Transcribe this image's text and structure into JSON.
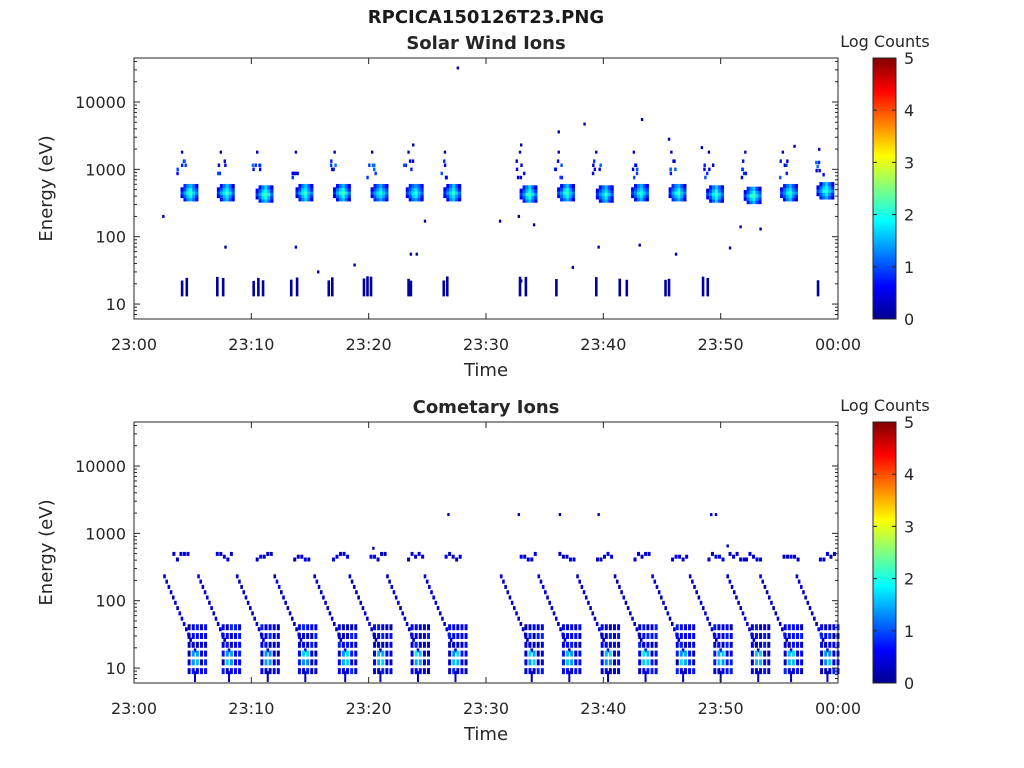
{
  "figure": {
    "title": "RPCICA150126T23.PNG"
  },
  "colorbar": {
    "label": "Log Counts",
    "ticks": [
      "0",
      "1",
      "2",
      "3",
      "4",
      "5"
    ],
    "colormap": [
      "#00008f",
      "#0000ff",
      "#0080ff",
      "#00ffff",
      "#80ff80",
      "#ffff00",
      "#ff8000",
      "#ff0000",
      "#800000"
    ]
  },
  "chart_data": [
    {
      "type": "heatmap",
      "title": "Solar Wind Ions",
      "xlabel": "Time",
      "ylabel": "Energy (eV)",
      "x_ticks": [
        "23:00",
        "23:10",
        "23:20",
        "23:30",
        "23:40",
        "23:50",
        "00:00"
      ],
      "y_ticks": [
        "10",
        "100",
        "1000",
        "10000"
      ],
      "y_scale": "log",
      "ylim": [
        6,
        45000
      ],
      "xlim_minutes": [
        0,
        60
      ],
      "clim": [
        0,
        5
      ],
      "blobs": [
        {
          "t": 4.8,
          "e": 450,
          "v": 1.9
        },
        {
          "t": 7.9,
          "e": 450,
          "v": 1.8
        },
        {
          "t": 11.2,
          "e": 430,
          "v": 1.9
        },
        {
          "t": 14.6,
          "e": 450,
          "v": 1.8
        },
        {
          "t": 17.8,
          "e": 450,
          "v": 1.9
        },
        {
          "t": 21.0,
          "e": 450,
          "v": 1.7
        },
        {
          "t": 24.0,
          "e": 450,
          "v": 1.6
        },
        {
          "t": 27.2,
          "e": 450,
          "v": 1.7
        },
        {
          "t": 33.7,
          "e": 430,
          "v": 1.9
        },
        {
          "t": 36.9,
          "e": 450,
          "v": 1.8
        },
        {
          "t": 40.2,
          "e": 430,
          "v": 1.6
        },
        {
          "t": 43.2,
          "e": 450,
          "v": 1.7
        },
        {
          "t": 46.4,
          "e": 450,
          "v": 1.8
        },
        {
          "t": 49.6,
          "e": 430,
          "v": 1.8
        },
        {
          "t": 52.8,
          "e": 410,
          "v": 1.9
        },
        {
          "t": 55.9,
          "e": 450,
          "v": 1.7
        },
        {
          "t": 59.0,
          "e": 480,
          "v": 1.8
        }
      ],
      "alpha_blobs": [
        {
          "t": 4.1,
          "e": 1000
        },
        {
          "t": 7.4,
          "e": 1000
        },
        {
          "t": 10.5,
          "e": 1000
        },
        {
          "t": 13.8,
          "e": 1000
        },
        {
          "t": 17.1,
          "e": 1000
        },
        {
          "t": 20.3,
          "e": 1000
        },
        {
          "t": 23.4,
          "e": 1000
        },
        {
          "t": 26.5,
          "e": 1000
        },
        {
          "t": 32.9,
          "e": 1000
        },
        {
          "t": 36.2,
          "e": 1000
        },
        {
          "t": 39.4,
          "e": 1000
        },
        {
          "t": 42.6,
          "e": 1000
        },
        {
          "t": 45.8,
          "e": 1000
        },
        {
          "t": 49.0,
          "e": 1000
        },
        {
          "t": 52.1,
          "e": 1000
        },
        {
          "t": 55.3,
          "e": 1000
        },
        {
          "t": 58.4,
          "e": 1100
        }
      ],
      "low_bars": [
        4.1,
        4.5,
        7.1,
        7.6,
        10.2,
        10.6,
        11.0,
        13.4,
        13.9,
        16.6,
        16.9,
        19.6,
        19.9,
        20.2,
        23.4,
        23.6,
        26.4,
        26.7,
        32.9,
        33.4,
        36.0,
        39.4,
        41.4,
        42.0,
        45.3,
        45.6,
        48.5,
        48.9,
        58.3
      ],
      "scatter": [
        {
          "t": 2.5,
          "e": 200
        },
        {
          "t": 7.8,
          "e": 70
        },
        {
          "t": 13.8,
          "e": 70
        },
        {
          "t": 15.7,
          "e": 30
        },
        {
          "t": 18.8,
          "e": 38
        },
        {
          "t": 23.6,
          "e": 55
        },
        {
          "t": 24.1,
          "e": 55
        },
        {
          "t": 24.8,
          "e": 170
        },
        {
          "t": 27.6,
          "e": 32000
        },
        {
          "t": 23.8,
          "e": 2300
        },
        {
          "t": 31.2,
          "e": 170
        },
        {
          "t": 32.8,
          "e": 200
        },
        {
          "t": 33.0,
          "e": 2300
        },
        {
          "t": 34.1,
          "e": 150
        },
        {
          "t": 36.2,
          "e": 3600
        },
        {
          "t": 38.4,
          "e": 4700
        },
        {
          "t": 43.3,
          "e": 5500
        },
        {
          "t": 45.6,
          "e": 2800
        },
        {
          "t": 48.4,
          "e": 2100
        },
        {
          "t": 51.7,
          "e": 140
        },
        {
          "t": 53.4,
          "e": 130
        },
        {
          "t": 56.3,
          "e": 2200
        },
        {
          "t": 39.6,
          "e": 70
        },
        {
          "t": 43.1,
          "e": 75
        },
        {
          "t": 46.2,
          "e": 55
        },
        {
          "t": 50.8,
          "e": 68
        },
        {
          "t": 37.4,
          "e": 35
        },
        {
          "t": 33.0,
          "e": 22
        }
      ]
    },
    {
      "type": "heatmap",
      "title": "Cometary Ions",
      "xlabel": "Time",
      "ylabel": "Energy (eV)",
      "x_ticks": [
        "23:00",
        "23:10",
        "23:20",
        "23:30",
        "23:40",
        "23:50",
        "00:00"
      ],
      "y_ticks": [
        "10",
        "100",
        "1000",
        "10000"
      ],
      "y_scale": "log",
      "ylim": [
        6,
        45000
      ],
      "xlim_minutes": [
        0,
        60
      ],
      "clim": [
        0,
        5
      ],
      "sw_band": [
        4.0,
        7.7,
        11.1,
        14.3,
        17.6,
        20.8,
        24.0,
        27.2,
        33.6,
        36.9,
        40.1,
        43.3,
        46.5,
        49.6,
        51.4,
        52.8,
        56.0,
        59.1
      ],
      "dispersions": [
        2.6,
        5.5,
        8.8,
        12.0,
        15.4,
        18.4,
        21.6,
        24.8,
        31.3,
        34.5,
        37.8,
        41.0,
        44.2,
        47.4,
        50.6,
        53.4,
        56.5
      ],
      "scatter": [
        {
          "t": 26.8,
          "e": 1900
        },
        {
          "t": 32.8,
          "e": 1900
        },
        {
          "t": 36.3,
          "e": 1900
        },
        {
          "t": 39.6,
          "e": 1900
        },
        {
          "t": 49.2,
          "e": 1900
        },
        {
          "t": 49.6,
          "e": 1900
        },
        {
          "t": 50.6,
          "e": 650
        },
        {
          "t": 20.4,
          "e": 600
        }
      ]
    }
  ]
}
